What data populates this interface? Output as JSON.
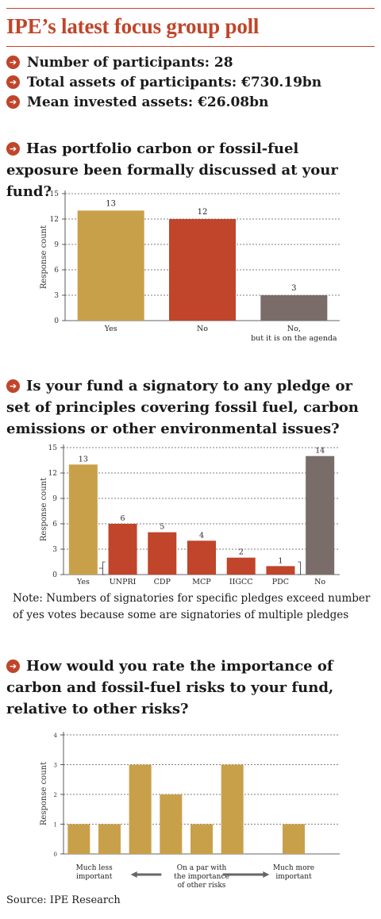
{
  "header": {
    "title": "IPE’s latest focus group poll"
  },
  "stats": [
    {
      "text": "Number of participants: 28"
    },
    {
      "text": "Total assets of participants: €730.19bn"
    },
    {
      "text": "Mean invested assets: €26.08bn"
    }
  ],
  "questions": [
    {
      "text": "Has portfolio carbon or fossil-fuel exposure been formally discussed at your fund?"
    },
    {
      "text": "Is your fund a signatory to any pledge or set of principles covering fossil fuel, carbon emissions or other environmental issues?"
    },
    {
      "text": "How would you rate the importance of carbon and fossil-fuel risks to your fund, relative to other risks?"
    }
  ],
  "note": "Note: Numbers of signatories for specific pledges exceed number of yes votes because some are signatories of multiple pledges",
  "source": "Source: IPE Research",
  "colors": {
    "accent": "#c0452a",
    "gold": "#c9a04a",
    "red": "#c0452a",
    "grey": "#7a6c68"
  },
  "chart_data": [
    {
      "type": "bar",
      "ylabel": "Response count",
      "ylim": [
        0,
        15
      ],
      "yticks": [
        0,
        3,
        6,
        9,
        12,
        15
      ],
      "grid": true,
      "categories": [
        "Yes",
        "No",
        "No, but it is on the agenda"
      ],
      "values": [
        13,
        12,
        3
      ],
      "bar_colors": [
        "#c9a04a",
        "#c0452a",
        "#7a6c68"
      ]
    },
    {
      "type": "bar",
      "ylabel": "Response count",
      "ylim": [
        0,
        15
      ],
      "yticks": [
        0,
        3,
        6,
        9,
        12,
        15
      ],
      "grid": true,
      "categories": [
        "Yes",
        "UNPRI",
        "CDP",
        "MCP",
        "IIGCC",
        "PDC",
        "No"
      ],
      "values": [
        13,
        6,
        5,
        4,
        2,
        1,
        14
      ],
      "bar_colors": [
        "#c9a04a",
        "#c0452a",
        "#c0452a",
        "#c0452a",
        "#c0452a",
        "#c0452a",
        "#7a6c68"
      ]
    },
    {
      "type": "bar",
      "ylabel": "Response count",
      "ylim": [
        0,
        4
      ],
      "yticks": [
        0,
        1,
        2,
        3,
        4
      ],
      "grid": true,
      "values": [
        1,
        1,
        3,
        2,
        1,
        3,
        0,
        1,
        0
      ],
      "bar_colors": [
        "#c9a04a"
      ],
      "scale_labels": [
        "Much less important",
        "On a par with the importance of other risks",
        "Much more important"
      ]
    }
  ]
}
